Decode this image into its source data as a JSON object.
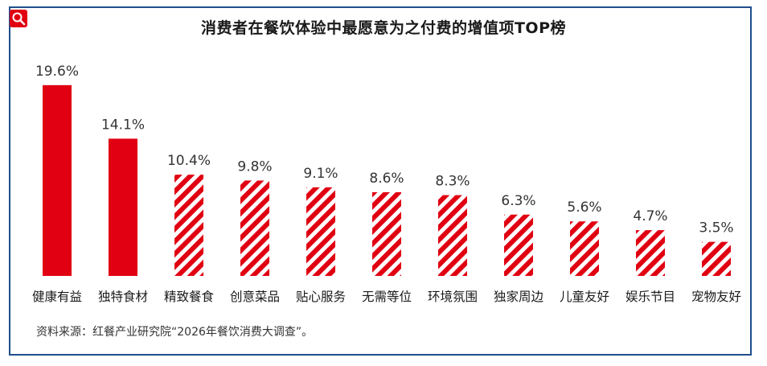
{
  "title": "消费者在餐饮体验中最愿意为之付费的增值项TOP榜",
  "source": "资料来源：红餐产业研究院“2026年餐饮消费大调查”。",
  "colors": {
    "bar": "#e00012",
    "frame": "#1f4e8c"
  },
  "chart_data": {
    "type": "bar",
    "title": "消费者在餐饮体验中最愿意为之付费的增值项TOP榜",
    "categories": [
      "健康有益",
      "独特食材",
      "精致餐食",
      "创意菜品",
      "贴心服务",
      "无需等位",
      "环境氛围",
      "独家周边",
      "儿童友好",
      "娱乐节目",
      "宠物友好"
    ],
    "values": [
      19.6,
      14.1,
      10.4,
      9.8,
      9.1,
      8.6,
      8.3,
      6.3,
      5.6,
      4.7,
      3.5
    ],
    "value_labels": [
      "19.6%",
      "14.1%",
      "10.4%",
      "9.8%",
      "9.1%",
      "8.6%",
      "8.3%",
      "6.3%",
      "5.6%",
      "4.7%",
      "3.5%"
    ],
    "fill_styles": [
      "solid",
      "solid",
      "hatched",
      "hatched",
      "hatched",
      "hatched",
      "hatched",
      "hatched",
      "hatched",
      "hatched",
      "hatched"
    ],
    "xlabel": "",
    "ylabel": "",
    "grid": false,
    "legend": "none"
  }
}
